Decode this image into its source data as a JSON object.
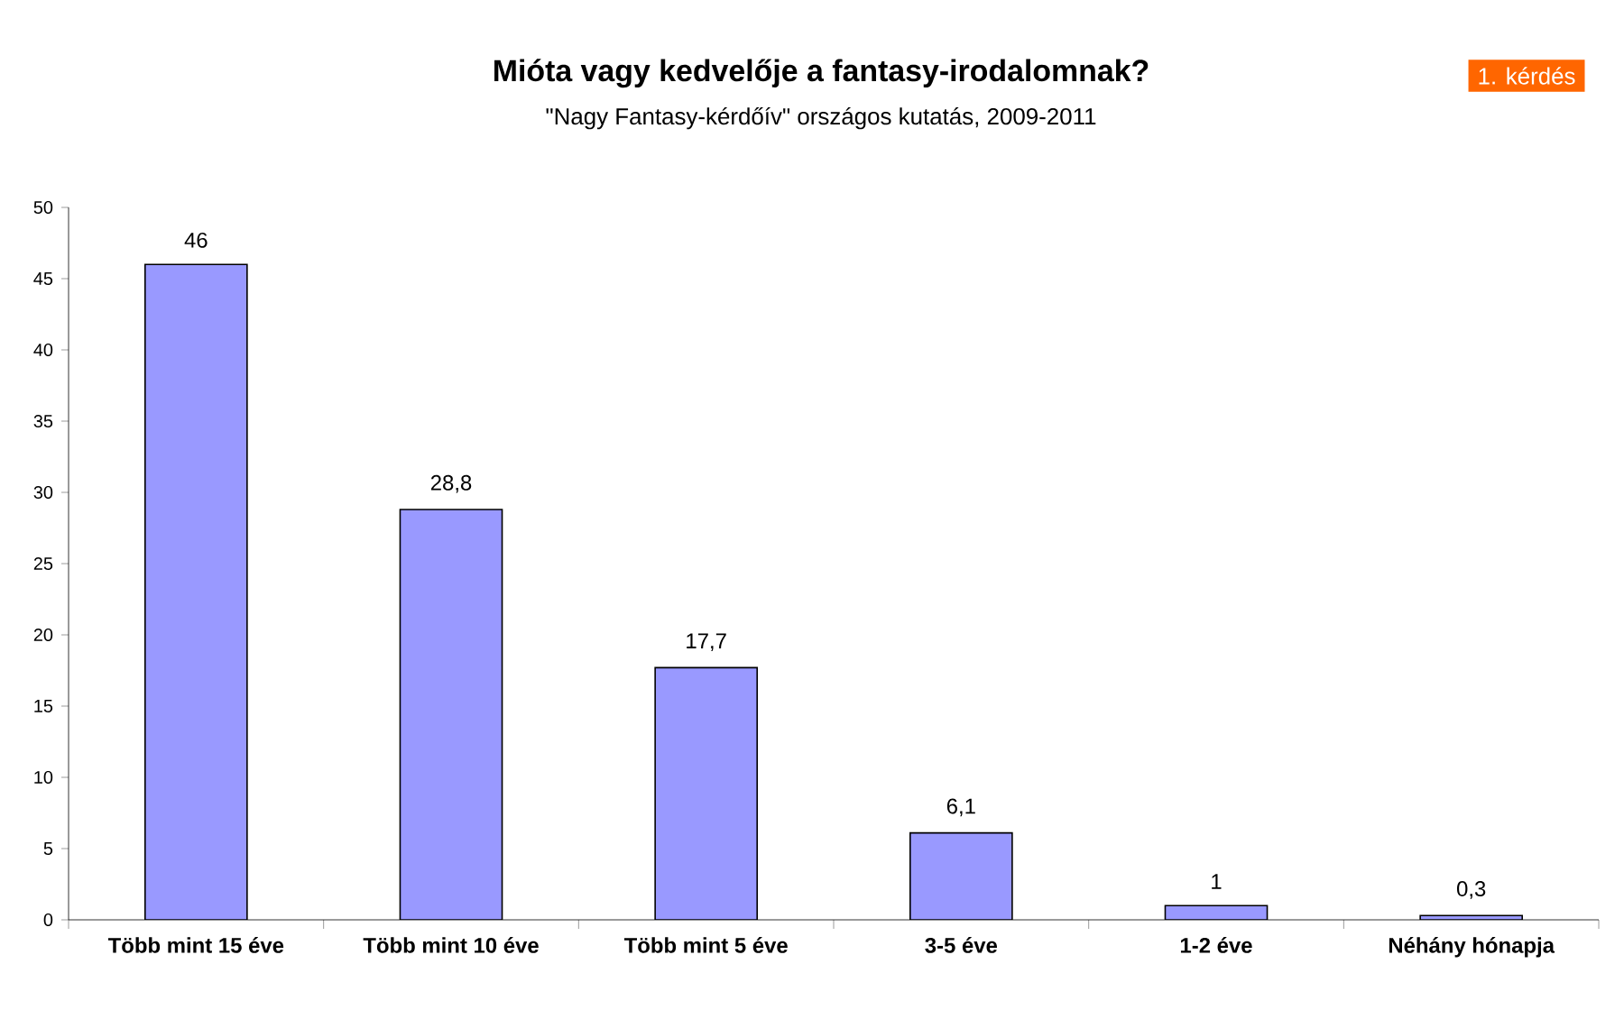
{
  "chart_data": {
    "type": "bar",
    "title": "Mióta vagy kedvelője a fantasy-irodalomnak?",
    "subtitle": "\"Nagy Fantasy-kérdőív\" országos kutatás, 2009-2011",
    "annotations": [
      "1. kérdés"
    ],
    "categories": [
      "Több mint 15 éve",
      "Több mint 10 éve",
      "Több mint 5 éve",
      "3-5 éve",
      "1-2 éve",
      "Néhány hónapja"
    ],
    "values": [
      46,
      28.8,
      17.7,
      6.1,
      1,
      0.3
    ],
    "value_labels": [
      "46",
      "28,8",
      "17,7",
      "6,1",
      "1",
      "0,3"
    ],
    "color": "#9999ff",
    "ylim": [
      0,
      50
    ],
    "yticks": [
      0,
      5,
      10,
      15,
      20,
      25,
      30,
      35,
      40,
      45,
      50
    ]
  }
}
